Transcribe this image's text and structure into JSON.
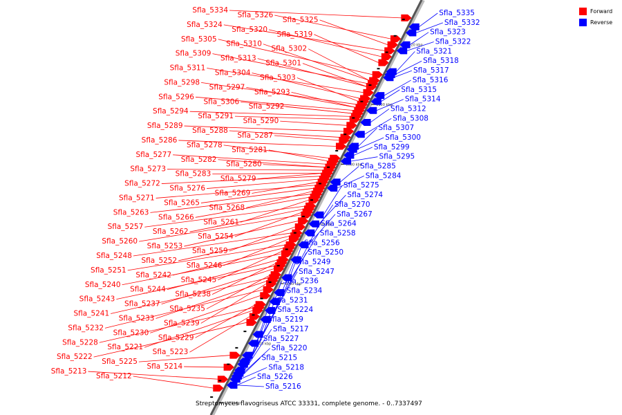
{
  "legend": {
    "forward_label": "Forward",
    "reverse_label": "Reverse",
    "forward_color": "#ff0000",
    "reverse_color": "#0000ff"
  },
  "caption": "Streptomyces flavogriseus ATCC 33331, complete genome. - 0..7337497",
  "ticks": [
    {
      "label": "6000 kbp",
      "pos": 6000
    },
    {
      "label": "6020 kbp",
      "pos": 6020
    },
    {
      "label": "6040 kbp",
      "pos": 6040
    },
    {
      "label": "6060 kbp",
      "pos": 6060
    },
    {
      "label": "6080 kbp",
      "pos": 6080
    },
    {
      "label": "6100 kbp",
      "pos": 6100
    },
    {
      "label": "6120 kbp",
      "pos": 6120
    }
  ],
  "forward_genes": [
    {
      "name": "Sfla_5334",
      "pos": 6129
    },
    {
      "name": "Sfla_5326",
      "pos": 6122
    },
    {
      "name": "Sfla_5325",
      "pos": 6120
    },
    {
      "name": "Sfla_5324",
      "pos": 6118
    },
    {
      "name": "Sfla_5320",
      "pos": 6116
    },
    {
      "name": "Sfla_5319",
      "pos": 6114
    },
    {
      "name": "Sfla_5313",
      "pos": 6106
    },
    {
      "name": "Sfla_5310",
      "pos": 6108
    },
    {
      "name": "Sfla_5309",
      "pos": 6107
    },
    {
      "name": "Sfla_5311",
      "pos": 6104
    },
    {
      "name": "Sfla_5306",
      "pos": 6097
    },
    {
      "name": "Sfla_5305",
      "pos": 6110
    },
    {
      "name": "Sfla_5302",
      "pos": 6108
    },
    {
      "name": "Sfla_5301",
      "pos": 6106
    },
    {
      "name": "Sfla_5304",
      "pos": 6102
    },
    {
      "name": "Sfla_5303",
      "pos": 6101
    },
    {
      "name": "Sfla_5298",
      "pos": 6100
    },
    {
      "name": "Sfla_5297",
      "pos": 6099
    },
    {
      "name": "Sfla_5296",
      "pos": 6098
    },
    {
      "name": "Sfla_5294",
      "pos": 6096
    },
    {
      "name": "Sfla_5293",
      "pos": 6099
    },
    {
      "name": "Sfla_5292",
      "pos": 6097
    },
    {
      "name": "Sfla_5291",
      "pos": 6095
    },
    {
      "name": "Sfla_5290",
      "pos": 6093
    },
    {
      "name": "Sfla_5289",
      "pos": 6091
    },
    {
      "name": "Sfla_5288",
      "pos": 6089
    },
    {
      "name": "Sfla_5287",
      "pos": 6088
    },
    {
      "name": "Sfla_5286",
      "pos": 6086
    },
    {
      "name": "Sfla_5282",
      "pos": 6079
    },
    {
      "name": "Sfla_5283",
      "pos": 6077
    },
    {
      "name": "Sfla_5281",
      "pos": 6081
    },
    {
      "name": "Sfla_5280",
      "pos": 6079
    },
    {
      "name": "Sfla_5279",
      "pos": 6077
    },
    {
      "name": "Sfla_5276",
      "pos": 6075
    },
    {
      "name": "Sfla_5271",
      "pos": 6073
    },
    {
      "name": "Sfla_5278",
      "pos": 6082
    },
    {
      "name": "Sfla_5277",
      "pos": 6080
    },
    {
      "name": "Sfla_5273",
      "pos": 6078
    },
    {
      "name": "Sfla_5272",
      "pos": 6076
    },
    {
      "name": "Sfla_5269",
      "pos": 6074
    },
    {
      "name": "Sfla_5265",
      "pos": 6072
    },
    {
      "name": "Sfla_5268",
      "pos": 6071
    },
    {
      "name": "Sfla_5263",
      "pos": 6070
    },
    {
      "name": "Sfla_5266",
      "pos": 6069
    },
    {
      "name": "Sfla_5261",
      "pos": 6068
    },
    {
      "name": "Sfla_5257",
      "pos": 6066
    },
    {
      "name": "Sfla_5262",
      "pos": 6065
    },
    {
      "name": "Sfla_5254",
      "pos": 6064
    },
    {
      "name": "Sfla_5260",
      "pos": 6063
    },
    {
      "name": "Sfla_5253",
      "pos": 6061
    },
    {
      "name": "Sfla_5259",
      "pos": 6059
    },
    {
      "name": "Sfla_5248",
      "pos": 6057
    },
    {
      "name": "Sfla_5252",
      "pos": 6056
    },
    {
      "name": "Sfla_5246",
      "pos": 6055
    },
    {
      "name": "Sfla_5251",
      "pos": 6053
    },
    {
      "name": "Sfla_5242",
      "pos": 6052
    },
    {
      "name": "Sfla_5245",
      "pos": 6051
    },
    {
      "name": "Sfla_5240",
      "pos": 6050
    },
    {
      "name": "Sfla_5244",
      "pos": 6048
    },
    {
      "name": "Sfla_5238",
      "pos": 6047
    },
    {
      "name": "Sfla_5243",
      "pos": 6046
    },
    {
      "name": "Sfla_5237",
      "pos": 6045
    },
    {
      "name": "Sfla_5235",
      "pos": 6043
    },
    {
      "name": "Sfla_5241",
      "pos": 6042
    },
    {
      "name": "Sfla_5233",
      "pos": 6041
    },
    {
      "name": "Sfla_5239",
      "pos": 6040
    },
    {
      "name": "Sfla_5232",
      "pos": 6038
    },
    {
      "name": "Sfla_5230",
      "pos": 6036
    },
    {
      "name": "Sfla_5229",
      "pos": 6033
    },
    {
      "name": "Sfla_5228",
      "pos": 6032
    },
    {
      "name": "Sfla_5221",
      "pos": 6031
    },
    {
      "name": "Sfla_5223",
      "pos": 6029
    },
    {
      "name": "Sfla_5222",
      "pos": 6027
    },
    {
      "name": "Sfla_5225",
      "pos": 6016
    },
    {
      "name": "Sfla_5214",
      "pos": 6012
    },
    {
      "name": "Sfla_5213",
      "pos": 6008
    },
    {
      "name": "Sfla_5212",
      "pos": 6005
    }
  ],
  "reverse_genes": [
    {
      "name": "Sfla_5335",
      "pos": 6126
    },
    {
      "name": "Sfla_5332",
      "pos": 6124
    },
    {
      "name": "Sfla_5323",
      "pos": 6120
    },
    {
      "name": "Sfla_5322",
      "pos": 6118
    },
    {
      "name": "Sfla_5321",
      "pos": 6111
    },
    {
      "name": "Sfla_5318",
      "pos": 6110
    },
    {
      "name": "Sfla_5317",
      "pos": 6109
    },
    {
      "name": "Sfla_5316",
      "pos": 6103
    },
    {
      "name": "Sfla_5315",
      "pos": 6101
    },
    {
      "name": "Sfla_5314",
      "pos": 6098
    },
    {
      "name": "Sfla_5312",
      "pos": 6094
    },
    {
      "name": "Sfla_5308",
      "pos": 6090
    },
    {
      "name": "Sfla_5307",
      "pos": 6086
    },
    {
      "name": "Sfla_5300",
      "pos": 6085
    },
    {
      "name": "Sfla_5299",
      "pos": 6083
    },
    {
      "name": "Sfla_5295",
      "pos": 6081
    },
    {
      "name": "Sfla_5285",
      "pos": 6074
    },
    {
      "name": "Sfla_5284",
      "pos": 6072
    },
    {
      "name": "Sfla_5275",
      "pos": 6063
    },
    {
      "name": "Sfla_5274",
      "pos": 6060
    },
    {
      "name": "Sfla_5270",
      "pos": 6057
    },
    {
      "name": "Sfla_5267",
      "pos": 6053
    },
    {
      "name": "Sfla_5264",
      "pos": 6048
    },
    {
      "name": "Sfla_5258",
      "pos": 6042
    },
    {
      "name": "Sfla_5256",
      "pos": 6037
    },
    {
      "name": "Sfla_5250",
      "pos": 6034
    },
    {
      "name": "Sfla_5249",
      "pos": 6031
    },
    {
      "name": "Sfla_5247",
      "pos": 6028
    },
    {
      "name": "Sfla_5236",
      "pos": 6023
    },
    {
      "name": "Sfla_5234",
      "pos": 6020
    },
    {
      "name": "Sfla_5231",
      "pos": 6016
    },
    {
      "name": "Sfla_5227",
      "pos": 6010
    },
    {
      "name": "Sfla_5226",
      "pos": 6006
    },
    {
      "name": "Sfla_5224",
      "pos": 6014
    },
    {
      "name": "Sfla_5219",
      "pos": 6013
    },
    {
      "name": "Sfla_5217",
      "pos": 6011
    },
    {
      "name": "Sfla_5220",
      "pos": 6010
    },
    {
      "name": "Sfla_5215",
      "pos": 6009
    },
    {
      "name": "Sfla_5218",
      "pos": 6008
    },
    {
      "name": "Sfla_5216",
      "pos": 6006
    }
  ]
}
